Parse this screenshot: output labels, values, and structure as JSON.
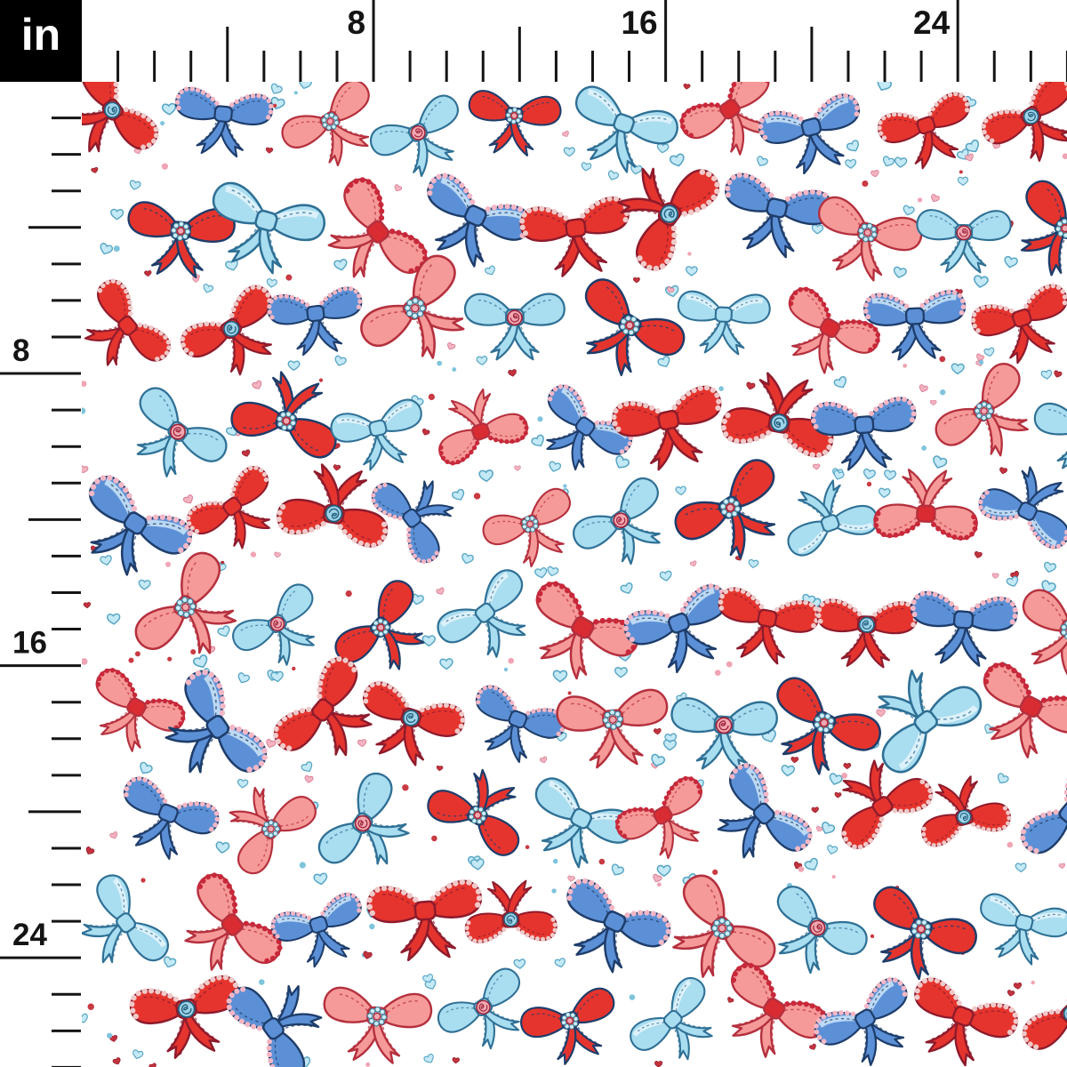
{
  "unit_box": {
    "label": "in",
    "background": "#000000",
    "text_color": "#ffffff"
  },
  "rulers": {
    "tick_color": "#141414",
    "labels": [
      {
        "text": "8",
        "inch": 8
      },
      {
        "text": "16",
        "inch": 16
      },
      {
        "text": "24",
        "inch": 24
      }
    ]
  },
  "pattern": {
    "background": "#ffffff",
    "colors": {
      "red": "#e5342e",
      "red_dark": "#8e1b2c",
      "navy": "#1e3d6b",
      "coral": "#f59a98",
      "coral_dark": "#b5303e",
      "blue": "#5c90d6",
      "blue_stripe": "#bcd9f4",
      "light_blue": "#a9ddf0",
      "light_blue_dark": "#2f7095",
      "light_blue_stripe": "#ddf1fa",
      "pink_trim": "#f3b7c6",
      "red_trim": "#c9283a",
      "red_knot": "#d92b32",
      "white_stitch": "#f0c9c9",
      "rose_pink": "#f2a7b2",
      "rose_pink_line": "#9c2136",
      "rose_blue": "#9fd3e8",
      "rose_blue_line": "#1f5e7e",
      "pearl_fill": "#cfeef8",
      "pearl_line": "#3e7d9b",
      "heart_blue": "#c4e9f6",
      "heart_blue_line": "#57a5c4",
      "heart_red": "#c3333d",
      "heart_pink": "#f3b3c0",
      "heart_pink_line": "#d4708a",
      "dot_blue": "#7fc4dd",
      "dot_red": "#c93a42",
      "dot_pink": "#f0a4b4"
    }
  }
}
